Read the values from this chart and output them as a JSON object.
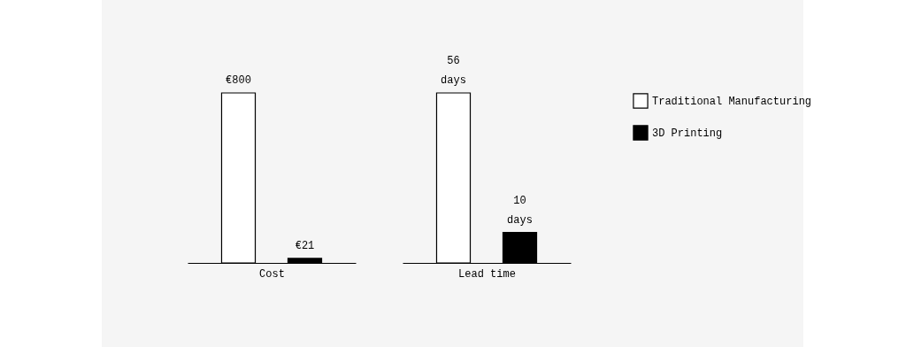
{
  "chart_data": [
    {
      "type": "bar",
      "categories": [
        null
      ],
      "xlabel": "Cost",
      "series": [
        {
          "color": "#ffffff",
          "values": [
            800
          ],
          "value_labels": [
            "€800"
          ]
        },
        {
          "color": "#000000",
          "values": [
            21
          ],
          "value_labels": [
            "€21"
          ]
        }
      ]
    },
    {
      "type": "bar",
      "categories": [
        null
      ],
      "xlabel": "Lead time",
      "legend": "right",
      "series": [
        {
          "name": "Traditional Manufacturing",
          "color": "#ffffff",
          "values": [
            56
          ],
          "value_labels": [
            "56 days"
          ]
        },
        {
          "name": "3D Printing",
          "color": "#000000",
          "values": [
            10
          ],
          "value_labels": [
            "10 days"
          ]
        }
      ]
    }
  ]
}
